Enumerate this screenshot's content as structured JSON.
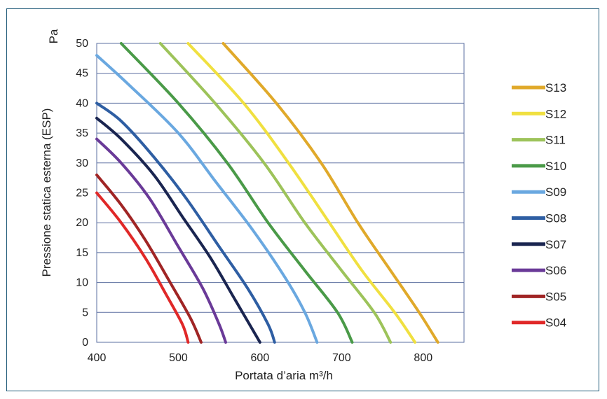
{
  "chart_data": {
    "type": "line",
    "xlabel": "Portata d’aria m³/h",
    "ylabel": "Pressione statica esterna (ESP)",
    "yunit": "Pa",
    "xlim": [
      400,
      850
    ],
    "ylim": [
      0,
      50
    ],
    "xticks": [
      "400",
      "500",
      "600",
      "700",
      "800"
    ],
    "yticks": [
      "0",
      "5",
      "10",
      "15",
      "20",
      "25",
      "30",
      "35",
      "40",
      "45",
      "50"
    ],
    "grid": "horizontal",
    "legend": "right",
    "series": [
      {
        "name": "S13",
        "color": "#e0a92a",
        "points": [
          [
            555,
            50
          ],
          [
            620,
            40
          ],
          [
            675,
            30
          ],
          [
            720,
            20
          ],
          [
            760,
            12
          ],
          [
            795,
            5
          ],
          [
            818,
            0
          ]
        ]
      },
      {
        "name": "S12",
        "color": "#f0e040",
        "points": [
          [
            512,
            50
          ],
          [
            580,
            40
          ],
          [
            635,
            30
          ],
          [
            685,
            20
          ],
          [
            725,
            12
          ],
          [
            765,
            5
          ],
          [
            790,
            0
          ]
        ]
      },
      {
        "name": "S11",
        "color": "#9dc35a",
        "points": [
          [
            478,
            50
          ],
          [
            545,
            40
          ],
          [
            605,
            30
          ],
          [
            655,
            20
          ],
          [
            700,
            12
          ],
          [
            740,
            5
          ],
          [
            760,
            0
          ]
        ]
      },
      {
        "name": "S10",
        "color": "#4a9a48",
        "points": [
          [
            430,
            50
          ],
          [
            500,
            40
          ],
          [
            560,
            30
          ],
          [
            610,
            20
          ],
          [
            655,
            12
          ],
          [
            695,
            5
          ],
          [
            713,
            0
          ]
        ]
      },
      {
        "name": "S09",
        "color": "#6aa8e0",
        "points": [
          [
            400,
            48
          ],
          [
            440,
            43
          ],
          [
            500,
            35
          ],
          [
            545,
            27
          ],
          [
            590,
            19
          ],
          [
            630,
            11
          ],
          [
            655,
            5
          ],
          [
            670,
            0
          ]
        ]
      },
      {
        "name": "S08",
        "color": "#2e5ea3",
        "points": [
          [
            400,
            40
          ],
          [
            430,
            37
          ],
          [
            470,
            31
          ],
          [
            510,
            24
          ],
          [
            550,
            16
          ],
          [
            585,
            9
          ],
          [
            610,
            3
          ],
          [
            618,
            0
          ]
        ]
      },
      {
        "name": "S07",
        "color": "#1a2550",
        "points": [
          [
            400,
            37.5
          ],
          [
            430,
            34
          ],
          [
            470,
            28
          ],
          [
            505,
            21
          ],
          [
            540,
            14
          ],
          [
            570,
            7
          ],
          [
            600,
            0
          ]
        ]
      },
      {
        "name": "S06",
        "color": "#6a3a98",
        "points": [
          [
            400,
            34
          ],
          [
            430,
            30
          ],
          [
            465,
            24
          ],
          [
            500,
            16
          ],
          [
            530,
            9
          ],
          [
            550,
            3
          ],
          [
            558,
            0
          ]
        ]
      },
      {
        "name": "S05",
        "color": "#a02525",
        "points": [
          [
            400,
            28
          ],
          [
            430,
            23
          ],
          [
            460,
            17
          ],
          [
            490,
            10
          ],
          [
            515,
            4
          ],
          [
            528,
            0
          ]
        ]
      },
      {
        "name": "S04",
        "color": "#e02828",
        "points": [
          [
            400,
            25
          ],
          [
            430,
            20
          ],
          [
            460,
            14
          ],
          [
            485,
            8
          ],
          [
            505,
            3
          ],
          [
            512,
            0
          ]
        ]
      }
    ]
  }
}
